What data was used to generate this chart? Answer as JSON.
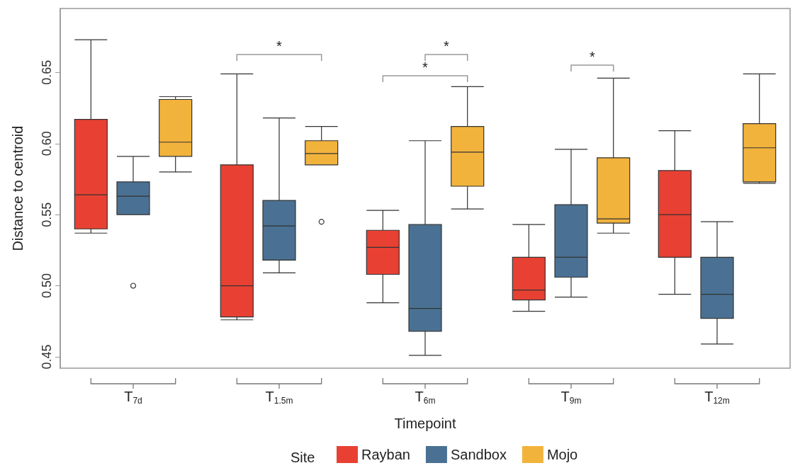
{
  "chart_data": {
    "type": "box",
    "xlabel": "Timepoint",
    "ylabel": "Distance to centroid",
    "legend_title": "Site",
    "legend": "bottom",
    "categories": [
      "T$_{7d}$",
      "T$_{1.5m}$",
      "T$_{6m}$",
      "T$_{9m}$",
      "T$_{12m}$"
    ],
    "ylim": [
      0.442,
      0.695
    ],
    "yticks": [
      {
        "value": 0.45,
        "label": "0.45"
      },
      {
        "value": 0.5,
        "label": "0.50"
      },
      {
        "value": 0.55,
        "label": "0.55"
      },
      {
        "value": 0.6,
        "label": "0.60"
      },
      {
        "value": 0.65,
        "label": "0.65"
      }
    ],
    "series": [
      {
        "name": "Rayban",
        "color": "#e84133",
        "boxes": [
          {
            "low": 0.537,
            "q1": 0.54,
            "median": 0.564,
            "q3": 0.617,
            "high": 0.673
          },
          {
            "low": 0.476,
            "q1": 0.478,
            "median": 0.5,
            "q3": 0.585,
            "high": 0.649
          },
          {
            "low": 0.488,
            "q1": 0.508,
            "median": 0.527,
            "q3": 0.539,
            "high": 0.553
          },
          {
            "low": 0.482,
            "q1": 0.49,
            "median": 0.497,
            "q3": 0.52,
            "high": 0.543
          },
          {
            "low": 0.494,
            "q1": 0.52,
            "median": 0.55,
            "q3": 0.581,
            "high": 0.609
          }
        ]
      },
      {
        "name": "Sandbox",
        "color": "#4a7193",
        "boxes": [
          {
            "low": 0.55,
            "q1": 0.55,
            "median": 0.563,
            "q3": 0.573,
            "high": 0.591,
            "outliers": [
              0.5
            ]
          },
          {
            "low": 0.509,
            "q1": 0.518,
            "median": 0.542,
            "q3": 0.56,
            "high": 0.618
          },
          {
            "low": 0.451,
            "q1": 0.468,
            "median": 0.484,
            "q3": 0.543,
            "high": 0.602
          },
          {
            "low": 0.492,
            "q1": 0.506,
            "median": 0.52,
            "q3": 0.557,
            "high": 0.596
          },
          {
            "low": 0.459,
            "q1": 0.477,
            "median": 0.494,
            "q3": 0.52,
            "high": 0.545
          }
        ]
      },
      {
        "name": "Mojo",
        "color": "#f2b33d",
        "boxes": [
          {
            "low": 0.58,
            "q1": 0.591,
            "median": 0.601,
            "q3": 0.631,
            "high": 0.633
          },
          {
            "low": 0.585,
            "q1": 0.585,
            "median": 0.593,
            "q3": 0.602,
            "high": 0.612,
            "outliers": [
              0.545
            ]
          },
          {
            "low": 0.554,
            "q1": 0.57,
            "median": 0.594,
            "q3": 0.612,
            "high": 0.64
          },
          {
            "low": 0.537,
            "q1": 0.544,
            "median": 0.547,
            "q3": 0.59,
            "high": 0.646
          },
          {
            "low": 0.572,
            "q1": 0.573,
            "median": 0.597,
            "q3": 0.614,
            "high": 0.649
          }
        ]
      }
    ],
    "annotations": [
      "*",
      "*",
      "*",
      "*"
    ]
  }
}
